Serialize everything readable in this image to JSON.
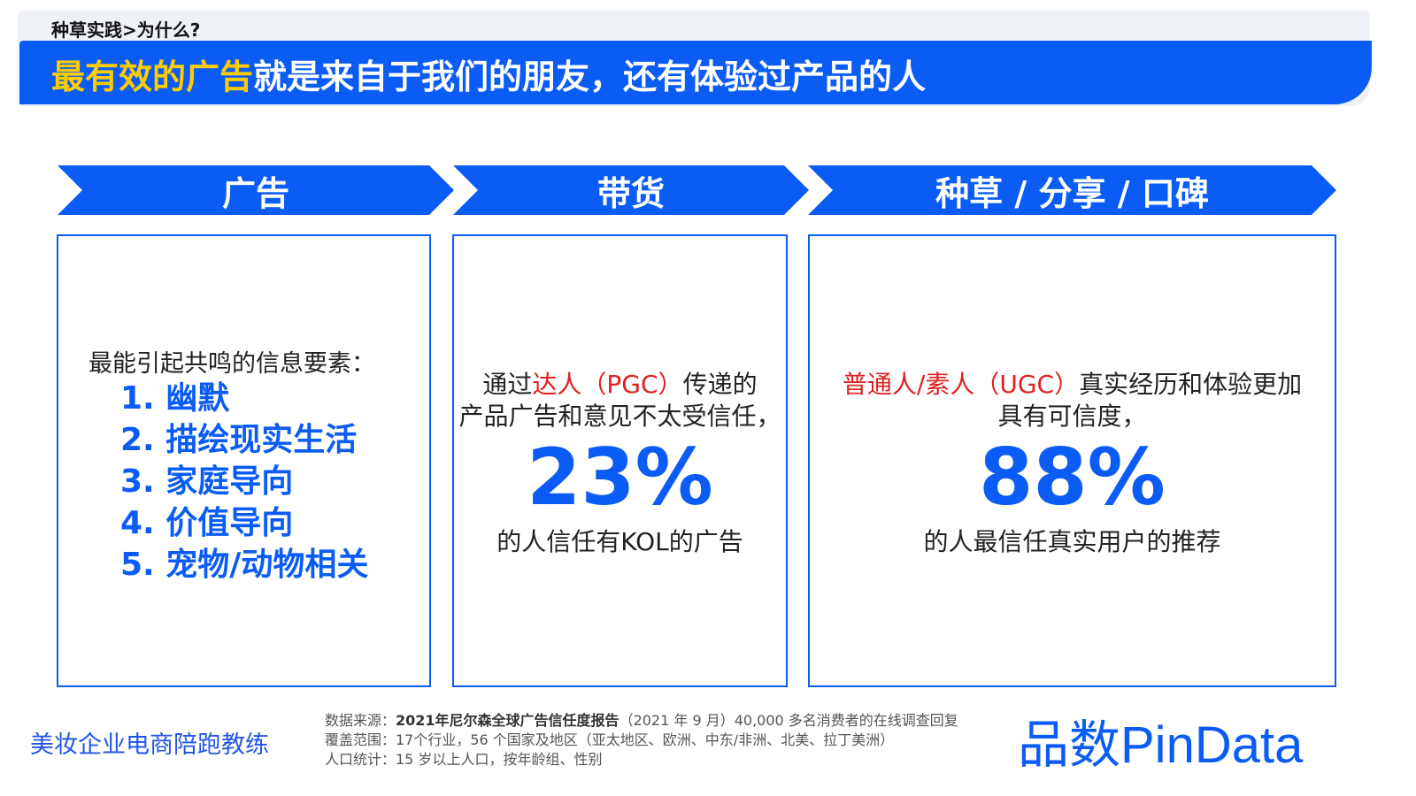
{
  "header": {
    "breadcrumb": "种草实践>为什么?",
    "title_highlight": "最有效的广告",
    "title_rest": "就是来自于我们的朋友，还有体验过产品的人"
  },
  "columns": [
    {
      "label": "广告",
      "heading": "最能引起共鸣的信息要素：",
      "items": [
        "1. 幽默",
        "2. 描绘现实生活",
        "3. 家庭导向",
        "4. 价值导向",
        "5. 宠物/动物相关"
      ]
    },
    {
      "label": "带货",
      "text_prefix": "通过",
      "text_red": "达人（PGC）",
      "text_suffix": "传递的",
      "text_line2": "产品广告和意见不太受信任，",
      "stat": "23%",
      "stat_caption": "的人信任有KOL的广告"
    },
    {
      "label": "种草 / 分享 / 口碑",
      "text_red": "普通人/素人（UGC）",
      "text_suffix": "真实经历和体验更加",
      "text_line2": "具有可信度，",
      "stat": "88%",
      "stat_caption": "的人最信任真实用户的推荐"
    }
  ],
  "footer": {
    "left_text": "美妆企业电商陪跑教练",
    "source_label": "数据来源：",
    "source_bold": "2021年尼尔森全球广告信任度报告",
    "source_rest": "（2021 年 9 月）40,000 多名消费者的在线调查回复",
    "coverage": "覆盖范围：17个行业，56 个国家及地区（亚太地区、欧洲、中东/非洲、北美、拉丁美洲）",
    "population": "人口统计：15 岁以上人口，按年龄组、性别",
    "logo": "品数PinData"
  },
  "colors": {
    "accent": "#0b5cf5",
    "highlight": "#ffcc00",
    "red": "#e02020"
  }
}
